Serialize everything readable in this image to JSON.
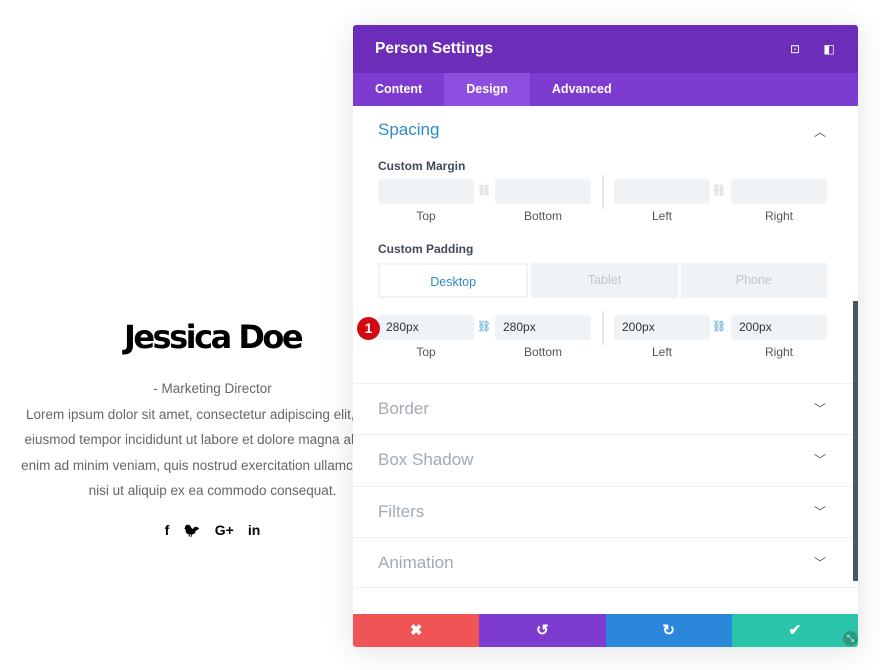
{
  "person": {
    "name": "Jessica Doe",
    "position": "- Marketing Director",
    "bio": [
      "Lorem ipsum dolor sit amet, consectetur adipiscing elit, sed do",
      "eiusmod tempor incididunt ut labore et dolore magna aliqua. Ut",
      "enim ad minim veniam, quis nostrud exercitation ullamco laboris",
      "nisi ut aliquip ex ea commodo consequat."
    ],
    "social": [
      "f",
      "🐦",
      "G+",
      "in"
    ]
  },
  "panel": {
    "title": "Person Settings",
    "tabs": [
      "Content",
      "Design",
      "Advanced"
    ],
    "spacing": {
      "title": "Spacing",
      "margin": {
        "label": "Custom Margin",
        "values": [
          "",
          "",
          "",
          ""
        ],
        "captions": [
          "Top",
          "Bottom",
          "Left",
          "Right"
        ]
      },
      "padding": {
        "label": "Custom Padding",
        "devices": [
          "Desktop",
          "Tablet",
          "Phone"
        ],
        "values": [
          "280px",
          "280px",
          "200px",
          "200px"
        ],
        "captions": [
          "Top",
          "Bottom",
          "Left",
          "Right"
        ]
      },
      "badge": "1"
    },
    "sections": [
      "Border",
      "Box Shadow",
      "Filters",
      "Animation"
    ],
    "footer": {
      "cancel": "✖",
      "undo": "↺",
      "redo": "↻",
      "save": "✔"
    }
  },
  "colors": {
    "header": "#6c2eb9",
    "tabs": "#7e3bd0",
    "accent": "#2e8ac9",
    "cancel": "#ef5555",
    "undo": "#7e3bd0",
    "redo": "#2b87da",
    "save": "#29c4a9"
  }
}
